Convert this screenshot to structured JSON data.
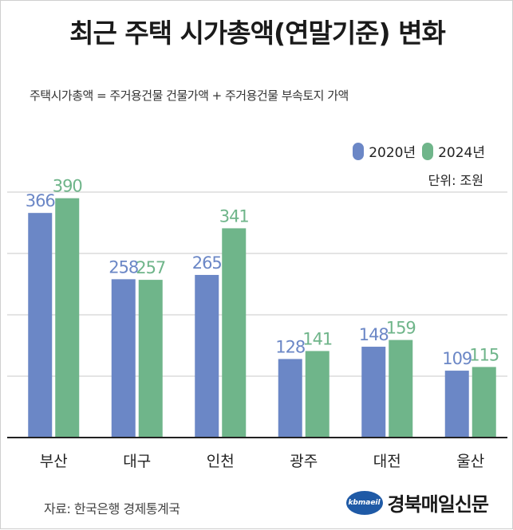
{
  "header": {
    "title": "최근 주택 시가총액(연말기준) 변화",
    "formula": "주택시가총액 = 주거용건물 건물가액 + 주거용건물 부속토지 가액"
  },
  "legend": [
    {
      "label": "2020년",
      "color": "#6b87c6"
    },
    {
      "label": "2024년",
      "color": "#6fb58a"
    }
  ],
  "unit": "단위: 조원",
  "footer": {
    "source": "자료: 한국은행 경제통계국",
    "brand_logo_text": "kbmaeil",
    "brand_name": "경북매일신문"
  },
  "chart_data": {
    "type": "bar",
    "categories": [
      "부산",
      "대구",
      "인천",
      "광주",
      "대전",
      "울산"
    ],
    "series": [
      {
        "name": "2020년",
        "color": "#6b87c6",
        "values": [
          366,
          258,
          265,
          128,
          148,
          109
        ]
      },
      {
        "name": "2024년",
        "color": "#6fb58a",
        "values": [
          390,
          257,
          341,
          141,
          159,
          115
        ]
      }
    ],
    "ylim": [
      0,
      400
    ],
    "grid": true,
    "legend_position": "top-right"
  }
}
